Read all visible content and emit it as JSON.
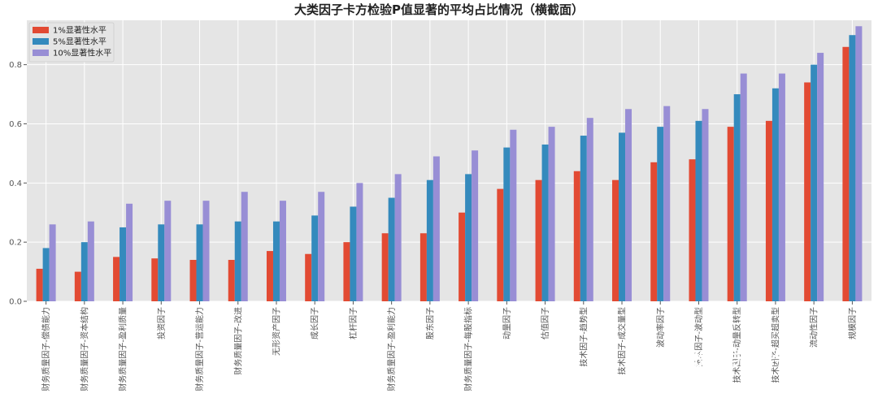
{
  "chart_data": {
    "type": "bar",
    "title": "大类因子卡方检验P值显著的平均占比情况（横截面）",
    "xlabel": "",
    "ylabel": "",
    "ylim": [
      0,
      0.95
    ],
    "yticks": [
      0.0,
      0.2,
      0.4,
      0.6,
      0.8
    ],
    "ytick_labels": [
      "0.0",
      "0.2",
      "0.4",
      "0.6",
      "0.8"
    ],
    "grid": true,
    "legend_position": "top-left",
    "categories": [
      "财务质量因子-偿债能力",
      "财务质量因子-资本结构",
      "财务质量因子-盈利质量",
      "投资因子",
      "财务质量因子-营运能力",
      "财务质量因子-改进",
      "无形资产因子",
      "成长因子",
      "杠杆因子",
      "财务质量因子-盈利能力",
      "股东因子",
      "财务质量因子-每股指标",
      "动量因子",
      "估值因子",
      "技术因子-趋势型",
      "技术因子-成交量型",
      "波动率因子",
      "技术因子-波动型",
      "技术因子-动量反转型",
      "技术因子-超买超卖型",
      "流动性因子",
      "规模因子"
    ],
    "series": [
      {
        "name": "1%显著性水平",
        "color": "#e24a33",
        "values": [
          0.11,
          0.1,
          0.15,
          0.145,
          0.14,
          0.14,
          0.17,
          0.16,
          0.2,
          0.23,
          0.23,
          0.3,
          0.38,
          0.41,
          0.44,
          0.41,
          0.47,
          0.48,
          0.59,
          0.61,
          0.74,
          0.86
        ]
      },
      {
        "name": "5%显著性水平",
        "color": "#348abd",
        "values": [
          0.18,
          0.2,
          0.25,
          0.26,
          0.26,
          0.27,
          0.27,
          0.29,
          0.32,
          0.35,
          0.41,
          0.43,
          0.52,
          0.53,
          0.56,
          0.57,
          0.59,
          0.61,
          0.7,
          0.72,
          0.8,
          0.9
        ]
      },
      {
        "name": "10%显著性水平",
        "color": "#988ed5",
        "values": [
          0.26,
          0.27,
          0.33,
          0.34,
          0.34,
          0.37,
          0.34,
          0.37,
          0.4,
          0.43,
          0.49,
          0.51,
          0.58,
          0.59,
          0.62,
          0.65,
          0.66,
          0.65,
          0.77,
          0.77,
          0.84,
          0.93
        ]
      }
    ]
  },
  "watermark": {
    "text": "量化投资与机器学习",
    "icon": "wechat-icon"
  },
  "colors": {
    "plot_background": "#e5e5e5",
    "grid": "#ffffff"
  }
}
